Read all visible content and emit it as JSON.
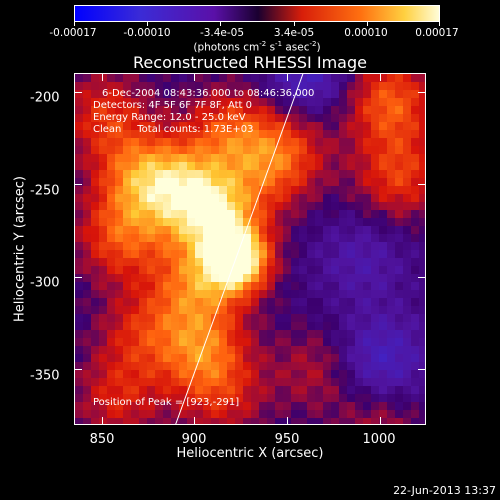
{
  "chart_data": {
    "type": "heatmap",
    "title": "Reconstructed RHESSI Image",
    "xlabel": "Heliocentric X (arcsec)",
    "ylabel": "Heliocentric Y (arcsec)",
    "xlim": [
      835,
      1025
    ],
    "ylim": [
      -380,
      -190
    ],
    "x_ticks": [
      "850",
      "900",
      "950",
      "1000"
    ],
    "y_ticks": [
      "-200",
      "-250",
      "-300",
      "-350"
    ],
    "colorbar": {
      "range": [
        -0.00017,
        0.00017
      ],
      "tick_labels": [
        "-0.00017",
        "-0.00010",
        "-3.4e-05",
        "3.4e-05",
        "0.00010",
        "0.00017"
      ],
      "units_main": "(photons cm",
      "units_exp1": "-2",
      "units_mid": " s",
      "units_exp2": "-1",
      "units_tail": " asec",
      "units_exp3": "-2",
      "units_close": ")"
    },
    "annotations": {
      "time_range": "6-Dec-2004 08:43:36.000 to 08:46:36.000",
      "detectors": "Detectors: 4F 5F 6F 7F 8F, Att 0",
      "energy_range": "Energy Range: 12.0 - 25.0 keV",
      "clean_counts": "Clean     Total counts: 1.73E+03",
      "peak": "Position of Peak = [923,-291]"
    },
    "peak_position": [
      923,
      -291
    ],
    "limb_line": {
      "points": [
        [
          889,
          -380
        ],
        [
          958,
          -190
        ]
      ],
      "color": "#ffffff"
    },
    "sources": [
      {
        "x": 923,
        "y": -291,
        "amplitude": 1.0
      },
      {
        "x": 912,
        "y": -268,
        "amplitude": 0.75
      },
      {
        "x": 893,
        "y": -252,
        "amplitude": 0.6
      },
      {
        "x": 870,
        "y": -245,
        "amplitude": 0.55
      },
      {
        "x": 860,
        "y": -278,
        "amplitude": 0.5
      },
      {
        "x": 900,
        "y": -305,
        "amplitude": 0.55
      },
      {
        "x": 904,
        "y": -340,
        "amplitude": 0.55
      },
      {
        "x": 918,
        "y": -220,
        "amplitude": 0.45
      },
      {
        "x": 940,
        "y": -240,
        "amplitude": 0.35
      },
      {
        "x": 851,
        "y": -212,
        "amplitude": 0.4
      },
      {
        "x": 871,
        "y": -330,
        "amplitude": 0.35
      },
      {
        "x": 858,
        "y": -365,
        "amplitude": 0.35
      },
      {
        "x": 915,
        "y": -365,
        "amplitude": 0.3
      },
      {
        "x": 1005,
        "y": -205,
        "amplitude": 0.55
      },
      {
        "x": 1010,
        "y": -245,
        "amplitude": 0.45
      },
      {
        "x": 950,
        "y": -230,
        "amplitude": 0.3
      },
      {
        "x": 965,
        "y": -350,
        "amplitude": 0.25
      },
      {
        "x": 1000,
        "y": -380,
        "amplitude": 0.25
      },
      {
        "x": 990,
        "y": -290,
        "amplitude": -0.2
      },
      {
        "x": 1000,
        "y": -345,
        "amplitude": -0.35
      },
      {
        "x": 960,
        "y": -190,
        "amplitude": -0.35
      }
    ]
  },
  "footer": {
    "timestamp": "22-Jun-2013 13:37"
  }
}
